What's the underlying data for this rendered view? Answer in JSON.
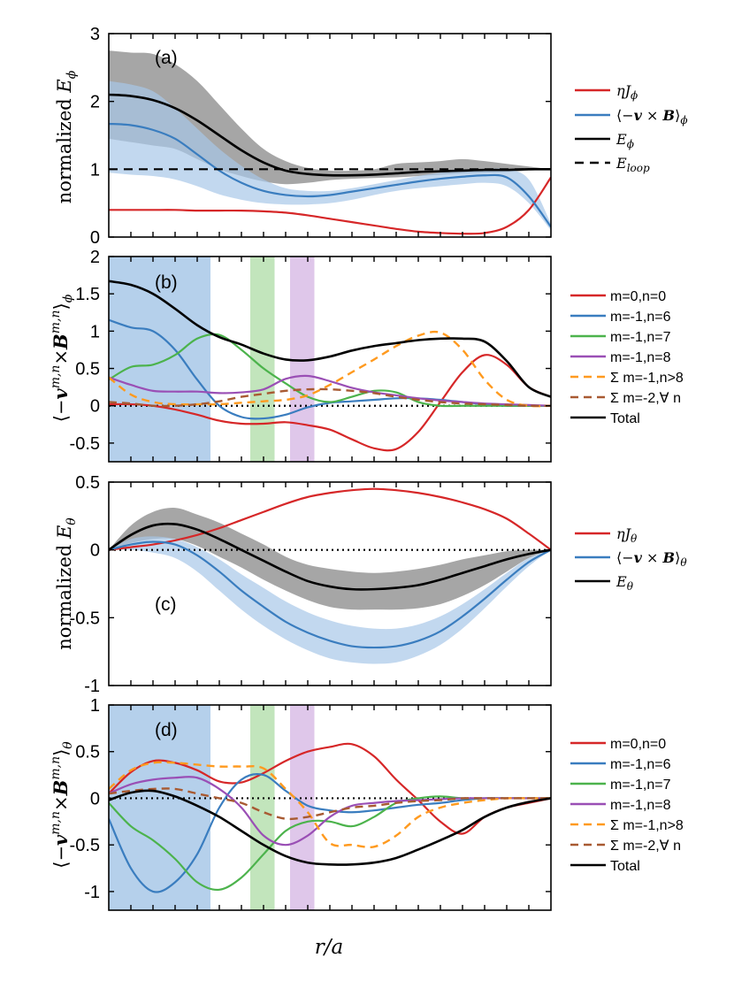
{
  "colors": {
    "red": "#d62728",
    "blue": "#3a7dbf",
    "green": "#4cb34c",
    "purple": "#9a4fb5",
    "orange": "#ff9a1f",
    "brown": "#a85a32",
    "black": "#000000",
    "grayband": "#808080",
    "blueband": "#a8c8e8",
    "greenband": "#b7e0b0",
    "purpleband": "#d9bde6"
  },
  "xlabel": "r/a",
  "chart_data": [
    {
      "id": "a",
      "type": "line",
      "panel_label": "(a)",
      "ylabel": "normalized E_φ",
      "ylim": [
        0,
        3
      ],
      "yticks": [
        0,
        1,
        2,
        3
      ],
      "yticklabels": [
        "0",
        "1",
        "2",
        "3"
      ],
      "xlim": [
        0,
        1
      ],
      "xticks_count": 20,
      "x": [
        0,
        0.05,
        0.1,
        0.15,
        0.2,
        0.25,
        0.3,
        0.35,
        0.4,
        0.45,
        0.5,
        0.55,
        0.6,
        0.65,
        0.7,
        0.75,
        0.8,
        0.85,
        0.9,
        0.95,
        1.0
      ],
      "bands": [
        {
          "color": "grayband",
          "alpha": 0.7,
          "lower": [
            1.45,
            1.4,
            1.35,
            1.3,
            1.15,
            1.0,
            0.9,
            0.82,
            0.78,
            0.8,
            0.84,
            0.86,
            0.87,
            0.88,
            0.9,
            0.92,
            0.94,
            0.95,
            0.96,
            0.98,
            1.0
          ],
          "upper": [
            2.75,
            2.72,
            2.7,
            2.55,
            2.3,
            1.95,
            1.6,
            1.3,
            1.12,
            1.02,
            0.98,
            0.98,
            1.0,
            1.08,
            1.1,
            1.12,
            1.15,
            1.12,
            1.08,
            1.04,
            1.0
          ]
        },
        {
          "color": "blueband",
          "alpha": 0.7,
          "lower": [
            0.95,
            0.92,
            0.9,
            0.85,
            0.75,
            0.63,
            0.55,
            0.5,
            0.48,
            0.48,
            0.5,
            0.55,
            0.62,
            0.68,
            0.72,
            0.75,
            0.78,
            0.8,
            0.75,
            0.5,
            0.1
          ],
          "upper": [
            2.3,
            2.25,
            2.15,
            1.9,
            1.6,
            1.3,
            1.05,
            0.85,
            0.72,
            0.68,
            0.68,
            0.72,
            0.78,
            0.84,
            0.9,
            0.95,
            0.98,
            1.0,
            1.0,
            0.85,
            0.2
          ]
        }
      ],
      "series": [
        {
          "name": "ηJ_φ",
          "color": "red",
          "width": 2.2,
          "dash": "",
          "values": [
            0.4,
            0.4,
            0.4,
            0.4,
            0.39,
            0.39,
            0.39,
            0.38,
            0.36,
            0.32,
            0.27,
            0.22,
            0.17,
            0.12,
            0.08,
            0.06,
            0.05,
            0.06,
            0.15,
            0.4,
            0.88
          ]
        },
        {
          "name": "⟨−v × B⟩_φ",
          "color": "blue",
          "width": 2.2,
          "dash": "",
          "values": [
            1.67,
            1.65,
            1.58,
            1.45,
            1.22,
            0.98,
            0.8,
            0.68,
            0.62,
            0.6,
            0.62,
            0.67,
            0.72,
            0.77,
            0.82,
            0.86,
            0.89,
            0.91,
            0.88,
            0.6,
            0.15
          ]
        },
        {
          "name": "E_φ",
          "color": "black",
          "width": 2.6,
          "dash": "",
          "values": [
            2.1,
            2.08,
            2.02,
            1.9,
            1.72,
            1.5,
            1.28,
            1.1,
            0.98,
            0.93,
            0.91,
            0.91,
            0.92,
            0.94,
            0.96,
            0.97,
            0.98,
            0.99,
            0.99,
            1.0,
            1.0
          ]
        },
        {
          "name": "E_loop",
          "color": "black",
          "width": 2.2,
          "dash": "10,7",
          "values": [
            1,
            1,
            1,
            1,
            1,
            1,
            1,
            1,
            1,
            1,
            1,
            1,
            1,
            1,
            1,
            1,
            1,
            1,
            1,
            1,
            1
          ]
        }
      ],
      "legend": [
        "ηJφ",
        "⟨−v × B⟩φ",
        "Eφ",
        "Eloop"
      ]
    },
    {
      "id": "b",
      "type": "line",
      "panel_label": "(b)",
      "ylabel": "⟨−v^{m,n}×B^{m,n}⟩_φ",
      "ylim": [
        -0.75,
        2
      ],
      "yticks": [
        -0.5,
        0,
        0.5,
        1,
        1.5,
        2
      ],
      "yticklabels": [
        "-0.5",
        "0",
        "0.5",
        "1",
        "1.5",
        "2"
      ],
      "xlim": [
        0,
        1
      ],
      "xticks_count": 20,
      "x": [
        0,
        0.05,
        0.1,
        0.15,
        0.2,
        0.25,
        0.3,
        0.35,
        0.4,
        0.45,
        0.5,
        0.55,
        0.6,
        0.65,
        0.7,
        0.75,
        0.8,
        0.85,
        0.9,
        0.95,
        1.0
      ],
      "vspans": [
        {
          "from": 0,
          "to": 0.23,
          "color": "blueband"
        },
        {
          "from": 0.32,
          "to": 0.375,
          "color": "greenband"
        },
        {
          "from": 0.41,
          "to": 0.465,
          "color": "purpleband"
        }
      ],
      "zero_line": true,
      "series": [
        {
          "name": "m=0,n=0",
          "color": "red",
          "width": 2.2,
          "dash": "",
          "values": [
            0.02,
            0.02,
            0.0,
            -0.05,
            -0.12,
            -0.2,
            -0.24,
            -0.24,
            -0.22,
            -0.26,
            -0.32,
            -0.45,
            -0.57,
            -0.58,
            -0.35,
            0.05,
            0.45,
            0.68,
            0.55,
            0.25,
            0.12
          ]
        },
        {
          "name": "m=-1,n=6",
          "color": "blue",
          "width": 2.2,
          "dash": "",
          "values": [
            1.15,
            1.05,
            1.0,
            0.75,
            0.35,
            0.0,
            -0.15,
            -0.17,
            -0.12,
            -0.02,
            0.04,
            0.06,
            0.08,
            0.1,
            0.1,
            0.08,
            0.05,
            0.02,
            0.0,
            0.0,
            0.0
          ]
        },
        {
          "name": "m=-1,n=7",
          "color": "green",
          "width": 2.2,
          "dash": "",
          "values": [
            0.35,
            0.52,
            0.55,
            0.68,
            0.9,
            0.95,
            0.75,
            0.5,
            0.3,
            0.12,
            0.05,
            0.12,
            0.2,
            0.18,
            0.05,
            0.0,
            0.0,
            0.0,
            0.0,
            0.0,
            0.0
          ]
        },
        {
          "name": "m=-1,n=8",
          "color": "purple",
          "width": 2.2,
          "dash": "",
          "values": [
            0.38,
            0.28,
            0.2,
            0.19,
            0.19,
            0.17,
            0.18,
            0.22,
            0.36,
            0.4,
            0.33,
            0.24,
            0.18,
            0.14,
            0.1,
            0.07,
            0.05,
            0.03,
            0.02,
            0.01,
            0.0
          ]
        },
        {
          "name": "Σ m=-1,n>8",
          "color": "orange",
          "width": 2.4,
          "dash": "9,6",
          "values": [
            0.38,
            0.15,
            0.05,
            0.02,
            0.02,
            0.02,
            0.04,
            0.06,
            0.08,
            0.14,
            0.28,
            0.45,
            0.62,
            0.8,
            0.94,
            0.98,
            0.75,
            0.35,
            0.08,
            0.0,
            0.0
          ]
        },
        {
          "name": "Σ m=-2,∀ n",
          "color": "brown",
          "width": 2.4,
          "dash": "9,6",
          "values": [
            0.05,
            0.03,
            0.0,
            0.0,
            0.02,
            0.06,
            0.12,
            0.16,
            0.2,
            0.22,
            0.22,
            0.2,
            0.17,
            0.12,
            0.08,
            0.05,
            0.03,
            0.02,
            0.01,
            0.0,
            0.0
          ]
        },
        {
          "name": "Total",
          "color": "black",
          "width": 2.6,
          "dash": "",
          "values": [
            1.67,
            1.62,
            1.5,
            1.3,
            1.08,
            0.92,
            0.82,
            0.7,
            0.62,
            0.61,
            0.66,
            0.74,
            0.8,
            0.84,
            0.88,
            0.9,
            0.9,
            0.86,
            0.6,
            0.25,
            0.12
          ]
        }
      ],
      "legend": [
        "m=0,n=0",
        "m=-1,n=6",
        "m=-1,n=7",
        "m=-1,n=8",
        "Σ m=-1,n>8",
        "Σ m=-2,∀ n",
        "Total"
      ]
    },
    {
      "id": "c",
      "type": "line",
      "panel_label": "(c)",
      "ylabel": "normalized E_θ",
      "ylim": [
        -1,
        0.5
      ],
      "yticks": [
        -1,
        -0.5,
        0,
        0.5
      ],
      "yticklabels": [
        "-1",
        "-0.5",
        "0",
        "0.5"
      ],
      "xlim": [
        0,
        1
      ],
      "xticks_count": 20,
      "x": [
        0,
        0.05,
        0.1,
        0.15,
        0.2,
        0.25,
        0.3,
        0.35,
        0.4,
        0.45,
        0.5,
        0.55,
        0.6,
        0.65,
        0.7,
        0.75,
        0.8,
        0.85,
        0.9,
        0.95,
        1.0
      ],
      "zero_line": true,
      "bands": [
        {
          "color": "grayband",
          "alpha": 0.7,
          "lower": [
            0,
            0.05,
            0.08,
            0.08,
            0.03,
            -0.05,
            -0.13,
            -0.22,
            -0.3,
            -0.37,
            -0.42,
            -0.44,
            -0.44,
            -0.44,
            -0.43,
            -0.4,
            -0.34,
            -0.26,
            -0.16,
            -0.06,
            0.0
          ],
          "upper": [
            0,
            0.18,
            0.28,
            0.31,
            0.26,
            0.2,
            0.12,
            0.04,
            -0.05,
            -0.11,
            -0.14,
            -0.16,
            -0.17,
            -0.16,
            -0.14,
            -0.11,
            -0.07,
            -0.04,
            -0.01,
            0.0,
            0.0
          ]
        },
        {
          "color": "blueband",
          "alpha": 0.7,
          "lower": [
            0,
            0.0,
            -0.02,
            -0.06,
            -0.16,
            -0.3,
            -0.44,
            -0.56,
            -0.66,
            -0.74,
            -0.8,
            -0.83,
            -0.84,
            -0.83,
            -0.78,
            -0.7,
            -0.58,
            -0.43,
            -0.27,
            -0.12,
            0.0
          ],
          "upper": [
            0,
            0.08,
            0.1,
            0.08,
            0.02,
            -0.07,
            -0.18,
            -0.28,
            -0.38,
            -0.46,
            -0.52,
            -0.56,
            -0.58,
            -0.58,
            -0.55,
            -0.49,
            -0.4,
            -0.29,
            -0.17,
            -0.06,
            0.0
          ]
        }
      ],
      "series": [
        {
          "name": "ηJ_θ",
          "color": "red",
          "width": 2.2,
          "dash": "",
          "values": [
            0,
            0.02,
            0.04,
            0.07,
            0.11,
            0.16,
            0.22,
            0.28,
            0.34,
            0.39,
            0.42,
            0.44,
            0.45,
            0.44,
            0.42,
            0.39,
            0.35,
            0.3,
            0.23,
            0.12,
            0.0
          ]
        },
        {
          "name": "⟨−v × B⟩_θ",
          "color": "blue",
          "width": 2.2,
          "dash": "",
          "values": [
            0,
            0.04,
            0.06,
            0.04,
            -0.04,
            -0.16,
            -0.3,
            -0.42,
            -0.53,
            -0.61,
            -0.67,
            -0.71,
            -0.72,
            -0.71,
            -0.67,
            -0.6,
            -0.49,
            -0.36,
            -0.22,
            -0.09,
            0.0
          ]
        },
        {
          "name": "E_θ",
          "color": "black",
          "width": 2.6,
          "dash": "",
          "values": [
            0,
            0.11,
            0.18,
            0.19,
            0.15,
            0.08,
            0.0,
            -0.08,
            -0.16,
            -0.23,
            -0.27,
            -0.29,
            -0.29,
            -0.28,
            -0.26,
            -0.22,
            -0.17,
            -0.12,
            -0.07,
            -0.03,
            0.0
          ]
        }
      ],
      "legend": [
        "ηJθ",
        "⟨−v × B⟩θ",
        "Eθ"
      ]
    },
    {
      "id": "d",
      "type": "line",
      "panel_label": "(d)",
      "ylabel": "⟨−v^{m,n}×B^{m,n}⟩_θ",
      "ylim": [
        -1.2,
        1
      ],
      "yticks": [
        -1,
        -0.5,
        0,
        0.5,
        1
      ],
      "yticklabels": [
        "-1",
        "-0.5",
        "0",
        "0.5",
        "1"
      ],
      "xlim": [
        0,
        1
      ],
      "xticks_count": 20,
      "x": [
        0,
        0.05,
        0.1,
        0.15,
        0.2,
        0.25,
        0.3,
        0.35,
        0.4,
        0.45,
        0.5,
        0.55,
        0.6,
        0.65,
        0.7,
        0.75,
        0.8,
        0.85,
        0.9,
        0.95,
        1.0
      ],
      "vspans": [
        {
          "from": 0,
          "to": 0.23,
          "color": "blueband"
        },
        {
          "from": 0.32,
          "to": 0.375,
          "color": "greenband"
        },
        {
          "from": 0.41,
          "to": 0.465,
          "color": "purpleband"
        }
      ],
      "zero_line": true,
      "series": [
        {
          "name": "m=0,n=0",
          "color": "red",
          "width": 2.2,
          "dash": "",
          "values": [
            0.05,
            0.28,
            0.4,
            0.38,
            0.3,
            0.18,
            0.17,
            0.27,
            0.4,
            0.5,
            0.55,
            0.58,
            0.45,
            0.2,
            -0.02,
            -0.25,
            -0.38,
            -0.2,
            -0.1,
            -0.05,
            0.0
          ]
        },
        {
          "name": "m=-1,n=6",
          "color": "blue",
          "width": 2.2,
          "dash": "",
          "values": [
            -0.22,
            -0.75,
            -1.0,
            -0.9,
            -0.6,
            -0.1,
            0.2,
            0.25,
            0.08,
            -0.08,
            -0.13,
            -0.15,
            -0.13,
            -0.1,
            -0.07,
            -0.05,
            -0.02,
            0.0,
            0.0,
            0.0,
            0.0
          ]
        },
        {
          "name": "m=-1,n=7",
          "color": "green",
          "width": 2.2,
          "dash": "",
          "values": [
            -0.05,
            -0.3,
            -0.45,
            -0.65,
            -0.9,
            -0.98,
            -0.85,
            -0.6,
            -0.35,
            -0.25,
            -0.25,
            -0.3,
            -0.2,
            -0.05,
            0.0,
            0.02,
            0.0,
            0.0,
            0.0,
            0.0,
            0.0
          ]
        },
        {
          "name": "m=-1,n=8",
          "color": "purple",
          "width": 2.2,
          "dash": "",
          "values": [
            0.05,
            0.15,
            0.2,
            0.22,
            0.22,
            0.1,
            -0.1,
            -0.4,
            -0.5,
            -0.4,
            -0.2,
            -0.08,
            -0.05,
            -0.03,
            -0.02,
            -0.01,
            0.0,
            0.0,
            0.0,
            0.0,
            0.0
          ]
        },
        {
          "name": "Σ m=-1,n>8",
          "color": "orange",
          "width": 2.4,
          "dash": "9,6",
          "values": [
            0.1,
            0.3,
            0.38,
            0.38,
            0.36,
            0.34,
            0.34,
            0.32,
            0.1,
            -0.15,
            -0.48,
            -0.5,
            -0.52,
            -0.4,
            -0.2,
            -0.1,
            -0.05,
            -0.02,
            0.0,
            0.0,
            0.0
          ]
        },
        {
          "name": "Σ m=-2,∀ n",
          "color": "brown",
          "width": 2.4,
          "dash": "9,6",
          "values": [
            0.05,
            0.08,
            0.1,
            0.1,
            0.05,
            0.0,
            -0.05,
            -0.15,
            -0.22,
            -0.2,
            -0.15,
            -0.1,
            -0.08,
            -0.05,
            -0.03,
            -0.02,
            0.0,
            0.0,
            0.0,
            0.0,
            0.0
          ]
        },
        {
          "name": "Total",
          "color": "black",
          "width": 2.6,
          "dash": "",
          "values": [
            -0.02,
            0.06,
            0.08,
            0.02,
            -0.08,
            -0.2,
            -0.35,
            -0.5,
            -0.62,
            -0.69,
            -0.71,
            -0.71,
            -0.69,
            -0.64,
            -0.55,
            -0.45,
            -0.34,
            -0.2,
            -0.1,
            -0.04,
            0.0
          ]
        }
      ],
      "legend": [
        "m=0,n=0",
        "m=-1,n=6",
        "m=-1,n=7",
        "m=-1,n=8",
        "Σ m=-1,n>8",
        "Σ m=-2,∀ n",
        "Total"
      ]
    }
  ]
}
